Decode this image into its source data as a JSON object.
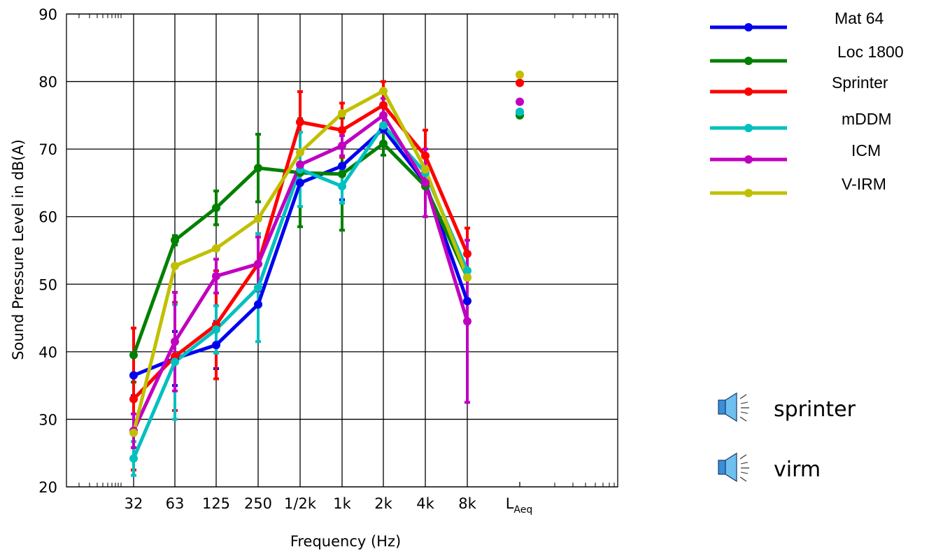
{
  "chart_data": {
    "type": "line",
    "ylabel": "Sound Pressure Level in dB(A)",
    "xlabel": "Frequency (Hz)",
    "ylim": [
      20,
      90
    ],
    "yticks": [
      20,
      30,
      40,
      50,
      60,
      70,
      80,
      90
    ],
    "categories": [
      "32",
      "63",
      "125",
      "250",
      "1/2k",
      "1k",
      "2k",
      "4k",
      "8k"
    ],
    "extra_category": {
      "main": "L",
      "sub": "Aeq"
    },
    "grid": true,
    "legend_position": "right",
    "series": [
      {
        "name": "Mat 64",
        "color": "#0000ee",
        "values": [
          36.5,
          39,
          41,
          47,
          65,
          67.5,
          73,
          65,
          47.5
        ],
        "errors": [
          3,
          4,
          3.5,
          0,
          0,
          5,
          0,
          0,
          0
        ],
        "laeq": 75.5
      },
      {
        "name": "Loc 1800",
        "color": "#008000",
        "values": [
          39.5,
          56.5,
          61.3,
          67.2,
          66.5,
          66.3,
          70.8,
          64.5,
          51
        ],
        "errors": [
          4,
          0.7,
          2.5,
          5,
          8,
          8.3,
          1.7,
          0,
          0
        ],
        "laeq": 75
      },
      {
        "name": "Sprinter",
        "color": "#ff0000",
        "values": [
          33,
          39.3,
          44,
          53,
          74,
          72.8,
          76.5,
          69,
          54.5
        ],
        "errors": [
          10.5,
          8,
          8,
          4,
          4.5,
          4,
          3.5,
          3.8,
          3.8
        ],
        "laeq": 79.8
      },
      {
        "name": "mDDM",
        "color": "#00c0c0",
        "values": [
          24.2,
          38.5,
          43.3,
          49.5,
          67,
          64.5,
          73.5,
          66.5,
          52
        ],
        "errors": [
          2.5,
          8.5,
          3.5,
          8,
          5.5,
          2.5,
          0,
          0,
          0
        ],
        "laeq": 75.5
      },
      {
        "name": "ICM",
        "color": "#c000c0",
        "values": [
          28.3,
          41.5,
          51.2,
          53,
          67.7,
          70.5,
          75,
          65,
          44.5
        ],
        "errors": [
          2.5,
          7.3,
          2.5,
          4,
          0,
          1.5,
          2.5,
          5,
          12
        ],
        "laeq": 77
      },
      {
        "name": "V-IRM",
        "color": "#c0c000",
        "values": [
          28,
          52.7,
          55.3,
          59.7,
          69.5,
          75.3,
          78.6,
          67,
          51
        ],
        "errors": [
          0,
          0,
          0,
          0,
          0,
          0,
          0,
          0,
          0
        ],
        "laeq": 81
      }
    ]
  },
  "sounds": [
    {
      "label": "sprinter",
      "icon": "speaker-icon"
    },
    {
      "label": "virm",
      "icon": "speaker-icon"
    }
  ]
}
